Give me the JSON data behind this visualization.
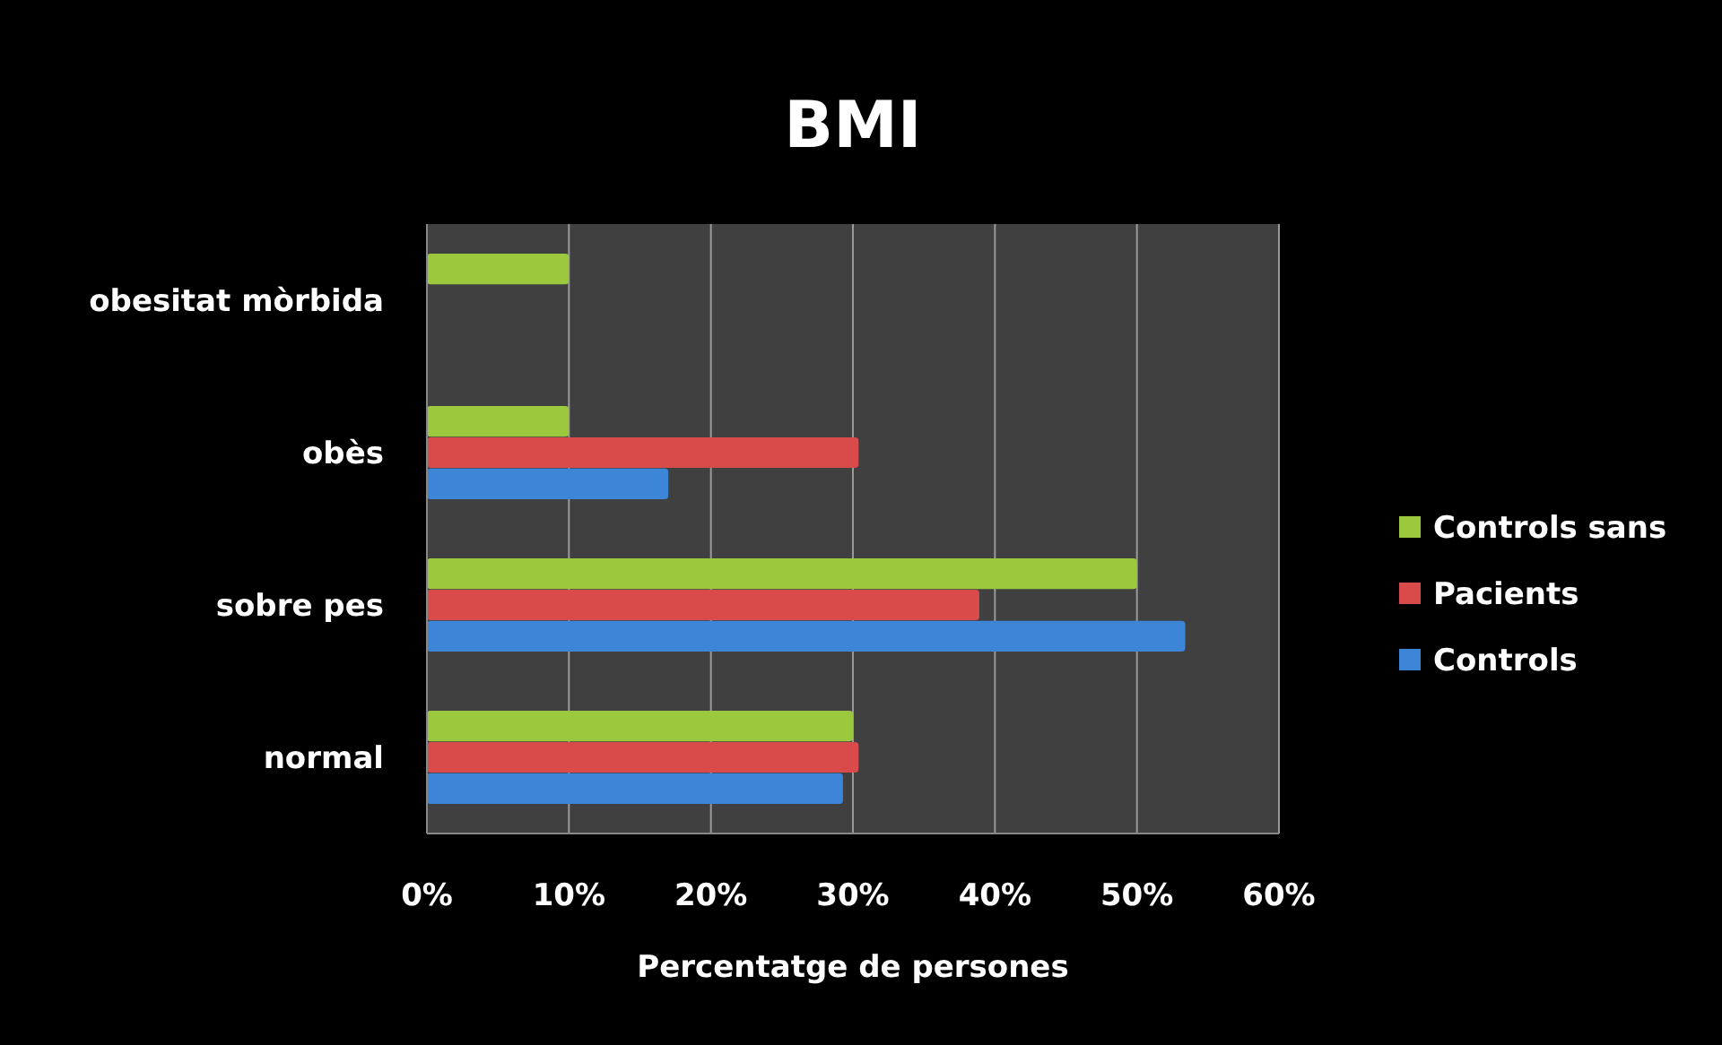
{
  "chart_data": {
    "type": "bar",
    "orientation": "horizontal",
    "title": "BMI",
    "xlabel": "Percentatge de persones",
    "categories": [
      "obesitat mòrbida",
      "obès",
      "sobre pes",
      "normal"
    ],
    "series": [
      {
        "name": "Controls",
        "color": "#3d85d6",
        "values": [
          0,
          17,
          53.4,
          29.3
        ]
      },
      {
        "name": "Pacients",
        "color": "#d94a4a",
        "values": [
          0,
          30.4,
          38.9,
          30.4
        ]
      },
      {
        "name": "Controls sans",
        "color": "#9bc83c",
        "values": [
          10,
          10,
          50,
          30
        ]
      }
    ],
    "xlim": [
      0,
      60
    ],
    "xticks": [
      {
        "value": 0,
        "label": "0%"
      },
      {
        "value": 10,
        "label": "10%"
      },
      {
        "value": 20,
        "label": "20%"
      },
      {
        "value": 30,
        "label": "30%"
      },
      {
        "value": 40,
        "label": "40%"
      },
      {
        "value": 50,
        "label": "50%"
      },
      {
        "value": 60,
        "label": "60%"
      }
    ],
    "grid": "x",
    "legend": "right"
  }
}
